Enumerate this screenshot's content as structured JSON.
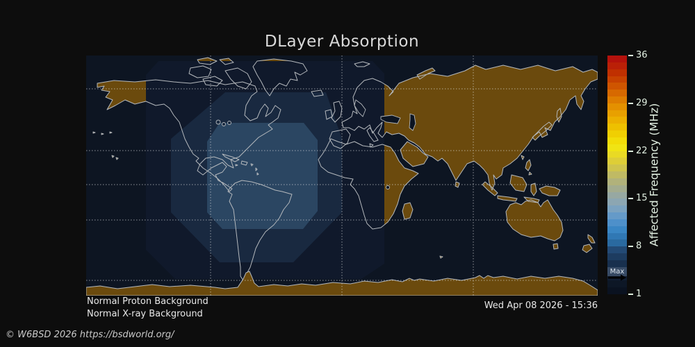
{
  "title": "DLayer Absorption",
  "status_lines": {
    "proton": "Normal Proton Background",
    "xray": "Normal X-ray Background"
  },
  "timestamp": "Wed Apr 08 2026 - 15:36",
  "copyright": "© W6BSD 2026 https://bsdworld.org/",
  "colorbar": {
    "label": "Affected Frequency (MHz)",
    "min": 1,
    "max": 36,
    "ticks": [
      36,
      29,
      22,
      15,
      8,
      1
    ],
    "max_marker": {
      "label": "Max",
      "value": 3.5
    },
    "band_colors": [
      "#0a1220",
      "#0d1726",
      "#101d31",
      "#14263f",
      "#18304e",
      "#1d3c60",
      "#234a75",
      "#2a6aa0",
      "#3078b4",
      "#3a86c4",
      "#4e90ca",
      "#659ac8",
      "#7ba2c0",
      "#8ca6b2",
      "#97a8a2",
      "#a3ac8f",
      "#b1b27b",
      "#c0ba64",
      "#cfc44d",
      "#dece37",
      "#e9da24",
      "#f0e414",
      "#f2dd08",
      "#f0cf02",
      "#eec000",
      "#ecb000",
      "#e8a000",
      "#e49000",
      "#de7d00",
      "#d76900",
      "#cf5500",
      "#c74200",
      "#c03000",
      "#ba2007",
      "#b4120c"
    ]
  },
  "map": {
    "ocean_color": "#0d1522",
    "night_land_color": "#6b4a0d",
    "coastline_color": "#b5b9bd",
    "gridline_color": "#e8e8e8",
    "absorption_levels": [
      {
        "name": "outer",
        "color": "#10192b"
      },
      {
        "name": "middle",
        "color": "#192940"
      },
      {
        "name": "inner",
        "color": "#2b4662"
      }
    ]
  }
}
